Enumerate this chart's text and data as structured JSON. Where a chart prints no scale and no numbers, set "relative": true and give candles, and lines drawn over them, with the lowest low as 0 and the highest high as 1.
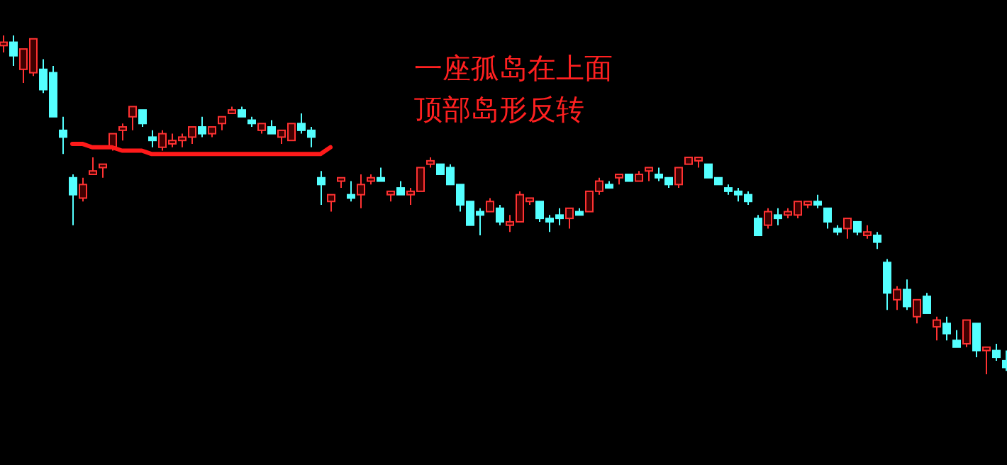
{
  "chart_data": {
    "type": "candlestick",
    "relative": true,
    "categories": [
      null,
      null,
      null,
      null,
      null,
      null,
      null,
      null,
      null,
      null,
      null,
      null,
      null,
      null,
      null,
      null,
      null,
      null,
      null,
      null,
      null,
      null,
      null,
      null,
      null,
      null,
      null,
      null,
      null,
      null,
      null,
      null,
      null,
      null,
      null,
      null,
      null,
      null,
      null,
      null,
      null,
      null,
      null,
      null,
      null,
      null,
      null,
      null,
      null,
      null,
      null,
      null,
      null,
      null,
      null,
      null,
      null,
      null,
      null,
      null,
      null,
      null,
      null,
      null,
      null,
      null,
      null,
      null,
      null,
      null,
      null,
      null,
      null,
      null,
      null,
      null,
      null,
      null,
      null,
      null,
      null,
      null,
      null,
      null,
      null,
      null,
      null,
      null,
      null,
      null,
      null,
      null,
      null,
      null,
      null,
      null,
      null,
      null,
      null,
      null,
      null,
      null
    ],
    "ohlc": [
      [
        0.97,
        1,
        0.95,
        0.98
      ],
      [
        0.98,
        1,
        0.91,
        0.94
      ],
      [
        0.9,
        0.96,
        0.86,
        0.96
      ],
      [
        0.89,
        0.99,
        0.88,
        0.99
      ],
      [
        0.9,
        0.93,
        0.83,
        0.84
      ],
      [
        0.89,
        0.91,
        0.76,
        0.76
      ],
      [
        0.72,
        0.76,
        0.65,
        0.7
      ],
      [
        0.58,
        0.59,
        0.44,
        0.53
      ],
      [
        0.52,
        0.58,
        0.51,
        0.56
      ],
      [
        0.59,
        0.64,
        0.59,
        0.6
      ],
      [
        0.61,
        0.62,
        0.58,
        0.62
      ],
      [
        0.67,
        0.71,
        0.66,
        0.71
      ],
      [
        0.72,
        0.74,
        0.69,
        0.73
      ],
      [
        0.76,
        0.79,
        0.72,
        0.79
      ],
      [
        0.78,
        0.78,
        0.73,
        0.74
      ],
      [
        0.7,
        0.72,
        0.67,
        0.69
      ],
      [
        0.67,
        0.72,
        0.66,
        0.71
      ],
      [
        0.68,
        0.71,
        0.67,
        0.69
      ],
      [
        0.69,
        0.71,
        0.67,
        0.7
      ],
      [
        0.7,
        0.73,
        0.68,
        0.73
      ],
      [
        0.73,
        0.76,
        0.7,
        0.71
      ],
      [
        0.71,
        0.73,
        0.7,
        0.73
      ],
      [
        0.74,
        0.76,
        0.72,
        0.76
      ],
      [
        0.77,
        0.79,
        0.77,
        0.78
      ],
      [
        0.78,
        0.79,
        0.76,
        0.76
      ],
      [
        0.75,
        0.76,
        0.73,
        0.74
      ],
      [
        0.72,
        0.74,
        0.71,
        0.74
      ],
      [
        0.73,
        0.75,
        0.71,
        0.71
      ],
      [
        0.7,
        0.72,
        0.68,
        0.72
      ],
      [
        0.69,
        0.74,
        0.69,
        0.74
      ],
      [
        0.74,
        0.77,
        0.71,
        0.72
      ],
      [
        0.72,
        0.73,
        0.67,
        0.7
      ],
      [
        0.58,
        0.6,
        0.5,
        0.56
      ],
      [
        0.51,
        0.53,
        0.48,
        0.53
      ],
      [
        0.57,
        0.58,
        0.55,
        0.58
      ],
      [
        0.53,
        0.57,
        0.51,
        0.52
      ],
      [
        0.53,
        0.59,
        0.49,
        0.56
      ],
      [
        0.57,
        0.59,
        0.56,
        0.58
      ],
      [
        0.58,
        0.61,
        0.57,
        0.57
      ],
      [
        0.53,
        0.54,
        0.51,
        0.54
      ],
      [
        0.55,
        0.57,
        0.53,
        0.53
      ],
      [
        0.53,
        0.55,
        0.5,
        0.54
      ],
      [
        0.54,
        0.61,
        0.54,
        0.61
      ],
      [
        0.62,
        0.64,
        0.61,
        0.63
      ],
      [
        0.62,
        0.62,
        0.59,
        0.59
      ],
      [
        0.61,
        0.62,
        0.56,
        0.56
      ],
      [
        0.56,
        0.56,
        0.48,
        0.5
      ],
      [
        0.51,
        0.51,
        0.44,
        0.44
      ],
      [
        0.48,
        0.49,
        0.41,
        0.47
      ],
      [
        0.48,
        0.52,
        0.48,
        0.51
      ],
      [
        0.49,
        0.5,
        0.44,
        0.45
      ],
      [
        0.44,
        0.47,
        0.42,
        0.45
      ],
      [
        0.45,
        0.54,
        0.45,
        0.53
      ],
      [
        0.51,
        0.52,
        0.5,
        0.52
      ],
      [
        0.51,
        0.51,
        0.45,
        0.46
      ],
      [
        0.46,
        0.47,
        0.42,
        0.45
      ],
      [
        0.47,
        0.49,
        0.44,
        0.46
      ],
      [
        0.46,
        0.49,
        0.43,
        0.49
      ],
      [
        0.48,
        0.49,
        0.47,
        0.47
      ],
      [
        0.48,
        0.54,
        0.48,
        0.54
      ],
      [
        0.54,
        0.58,
        0.53,
        0.57
      ],
      [
        0.56,
        0.57,
        0.55,
        0.55
      ],
      [
        0.58,
        0.59,
        0.56,
        0.59
      ],
      [
        0.59,
        0.59,
        0.57,
        0.57
      ],
      [
        0.57,
        0.6,
        0.57,
        0.59
      ],
      [
        0.6,
        0.61,
        0.57,
        0.61
      ],
      [
        0.59,
        0.61,
        0.57,
        0.58
      ],
      [
        0.58,
        0.58,
        0.55,
        0.56
      ],
      [
        0.56,
        0.61,
        0.55,
        0.61
      ],
      [
        0.62,
        0.64,
        0.62,
        0.64
      ],
      [
        0.63,
        0.64,
        0.61,
        0.64
      ],
      [
        0.62,
        0.62,
        0.58,
        0.58
      ],
      [
        0.58,
        0.58,
        0.56,
        0.56
      ],
      [
        0.55,
        0.56,
        0.53,
        0.54
      ],
      [
        0.54,
        0.55,
        0.51,
        0.53
      ],
      [
        0.53,
        0.54,
        0.5,
        0.51
      ],
      [
        0.46,
        0.47,
        0.41,
        0.41
      ],
      [
        0.44,
        0.49,
        0.43,
        0.48
      ],
      [
        0.47,
        0.49,
        0.44,
        0.46
      ],
      [
        0.47,
        0.49,
        0.46,
        0.48
      ],
      [
        0.47,
        0.51,
        0.46,
        0.51
      ],
      [
        0.5,
        0.51,
        0.49,
        0.51
      ],
      [
        0.51,
        0.53,
        0.49,
        0.5
      ],
      [
        0.49,
        0.49,
        0.43,
        0.45
      ],
      [
        0.43,
        0.44,
        0.41,
        0.42
      ],
      [
        0.43,
        0.46,
        0.4,
        0.46
      ],
      [
        0.45,
        0.45,
        0.41,
        0.42
      ],
      [
        0.41,
        0.44,
        0.4,
        0.42
      ],
      [
        0.41,
        0.42,
        0.37,
        0.39
      ],
      [
        0.33,
        0.34,
        0.19,
        0.24
      ],
      [
        0.22,
        0.26,
        0.19,
        0.25
      ],
      [
        0.25,
        0.28,
        0.19,
        0.2
      ],
      [
        0.17,
        0.22,
        0.15,
        0.22
      ],
      [
        0.23,
        0.24,
        0.18,
        0.18
      ],
      [
        0.14,
        0.17,
        0.1,
        0.16
      ],
      [
        0.15,
        0.17,
        0.1,
        0.12
      ],
      [
        0.1,
        0.13,
        0.08,
        0.08
      ],
      [
        0.09,
        0.16,
        0.08,
        0.16
      ],
      [
        0.15,
        0.15,
        0.05,
        0.07
      ],
      [
        0.07,
        0.08,
        0,
        0.08
      ],
      [
        0.07,
        0.09,
        0.04,
        0.05
      ],
      [
        0.04,
        0.07,
        0.01,
        0.02
      ]
    ],
    "series": [
      {
        "type": "line",
        "color": "#ff1a1a",
        "values": [
          null,
          null,
          null,
          null,
          null,
          null,
          null,
          0.68,
          0.68,
          0.67,
          0.67,
          0.67,
          0.66,
          0.66,
          0.66,
          0.65,
          0.65,
          0.65,
          0.65,
          0.65,
          0.65,
          0.65,
          0.65,
          0.65,
          0.65,
          0.65,
          0.65,
          0.65,
          0.65,
          0.65,
          0.65,
          0.65,
          0.65,
          0.67,
          null,
          null,
          null,
          null,
          null,
          null,
          null,
          null,
          null,
          null,
          null,
          null,
          null,
          null,
          null,
          null,
          null,
          null,
          null,
          null,
          null,
          null,
          null,
          null,
          null,
          null,
          null,
          null,
          null,
          null,
          null,
          null,
          null,
          null,
          null,
          null,
          null,
          null,
          null,
          null,
          null,
          null,
          null,
          null,
          null,
          null,
          null,
          null,
          null,
          null,
          null,
          null,
          null,
          null,
          null,
          null,
          null,
          null,
          null,
          null,
          null,
          null,
          null,
          null,
          null,
          null,
          null,
          null
        ]
      }
    ],
    "annotations": [
      "一座孤岛在上面",
      "顶部岛形反转"
    ]
  }
}
